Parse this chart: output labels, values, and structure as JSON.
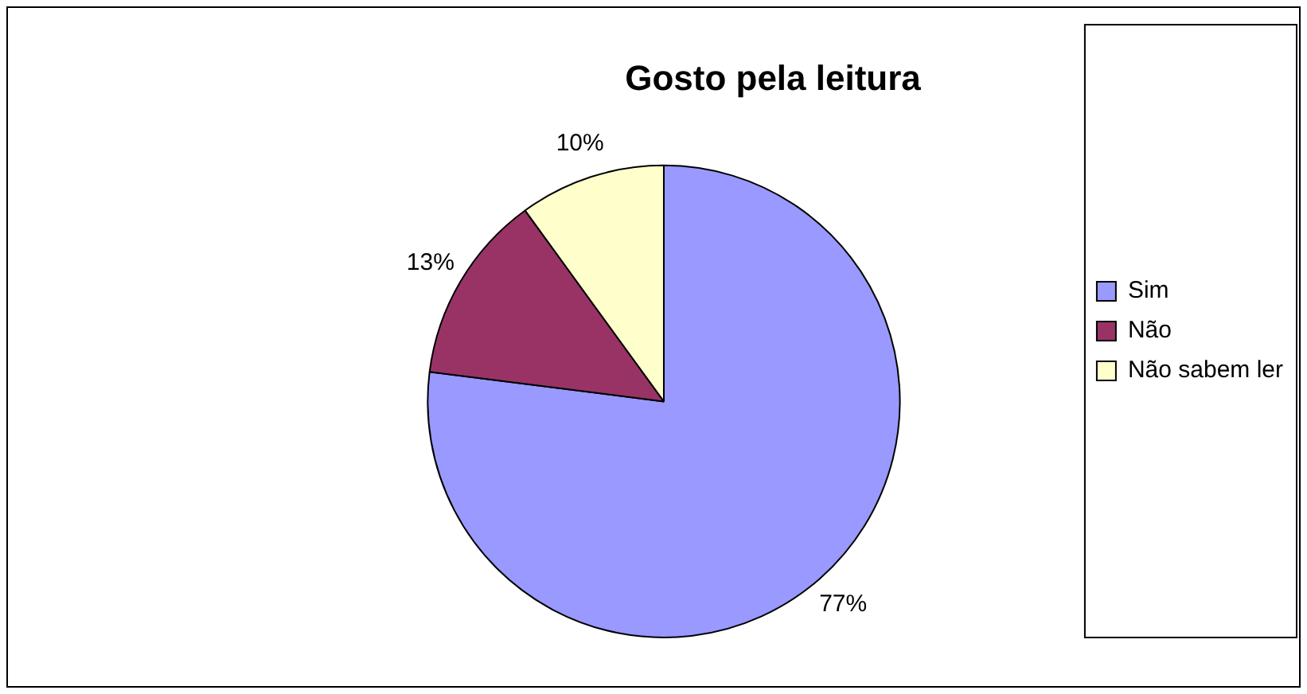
{
  "chart_data": {
    "type": "pie",
    "title": "Gosto pela leitura",
    "categories": [
      "Sim",
      "Não",
      "Não sabem ler"
    ],
    "values": [
      77,
      13,
      10
    ],
    "colors": [
      "#9999ff",
      "#993366",
      "#ffffcc"
    ],
    "value_labels": [
      "77%",
      "13%",
      "10%"
    ],
    "legend": "right"
  }
}
